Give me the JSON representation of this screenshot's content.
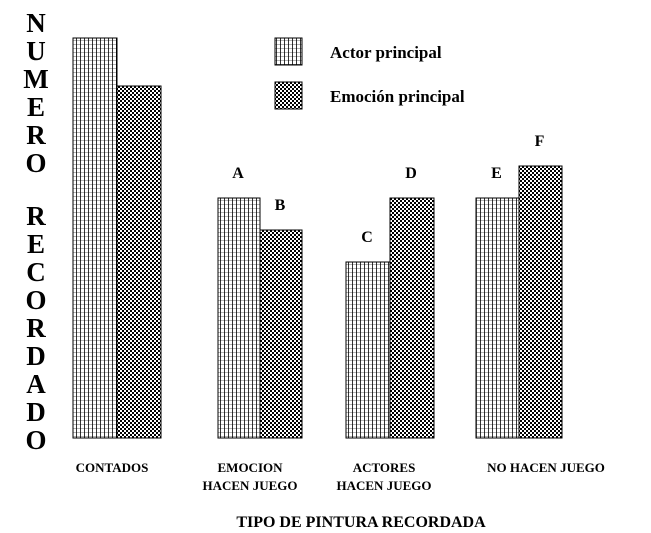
{
  "chart_data": {
    "type": "bar",
    "title": "",
    "xlabel": "TIPO DE PINTURA RECORDADA",
    "ylabel": "NUMERO RECORDADO",
    "categories": [
      [
        "CONTADOS"
      ],
      [
        "EMOCION",
        "HACEN JUEGO"
      ],
      [
        "ACTORES",
        "HACEN JUEGO"
      ],
      [
        "NO  HACEN JUEGO"
      ]
    ],
    "series": [
      {
        "name": "Actor principal",
        "pattern": "fine-hatch",
        "values": [
          100,
          60,
          44,
          60
        ],
        "labels": [
          "",
          "A",
          "C",
          "E"
        ]
      },
      {
        "name": "Emoción principal",
        "pattern": "checker",
        "values": [
          88,
          52,
          60,
          68
        ],
        "labels": [
          "",
          "B",
          "D",
          "F"
        ]
      }
    ],
    "ylim": [
      0,
      100
    ],
    "grid": false,
    "axes_visible": false,
    "legend_position": "top-center"
  }
}
